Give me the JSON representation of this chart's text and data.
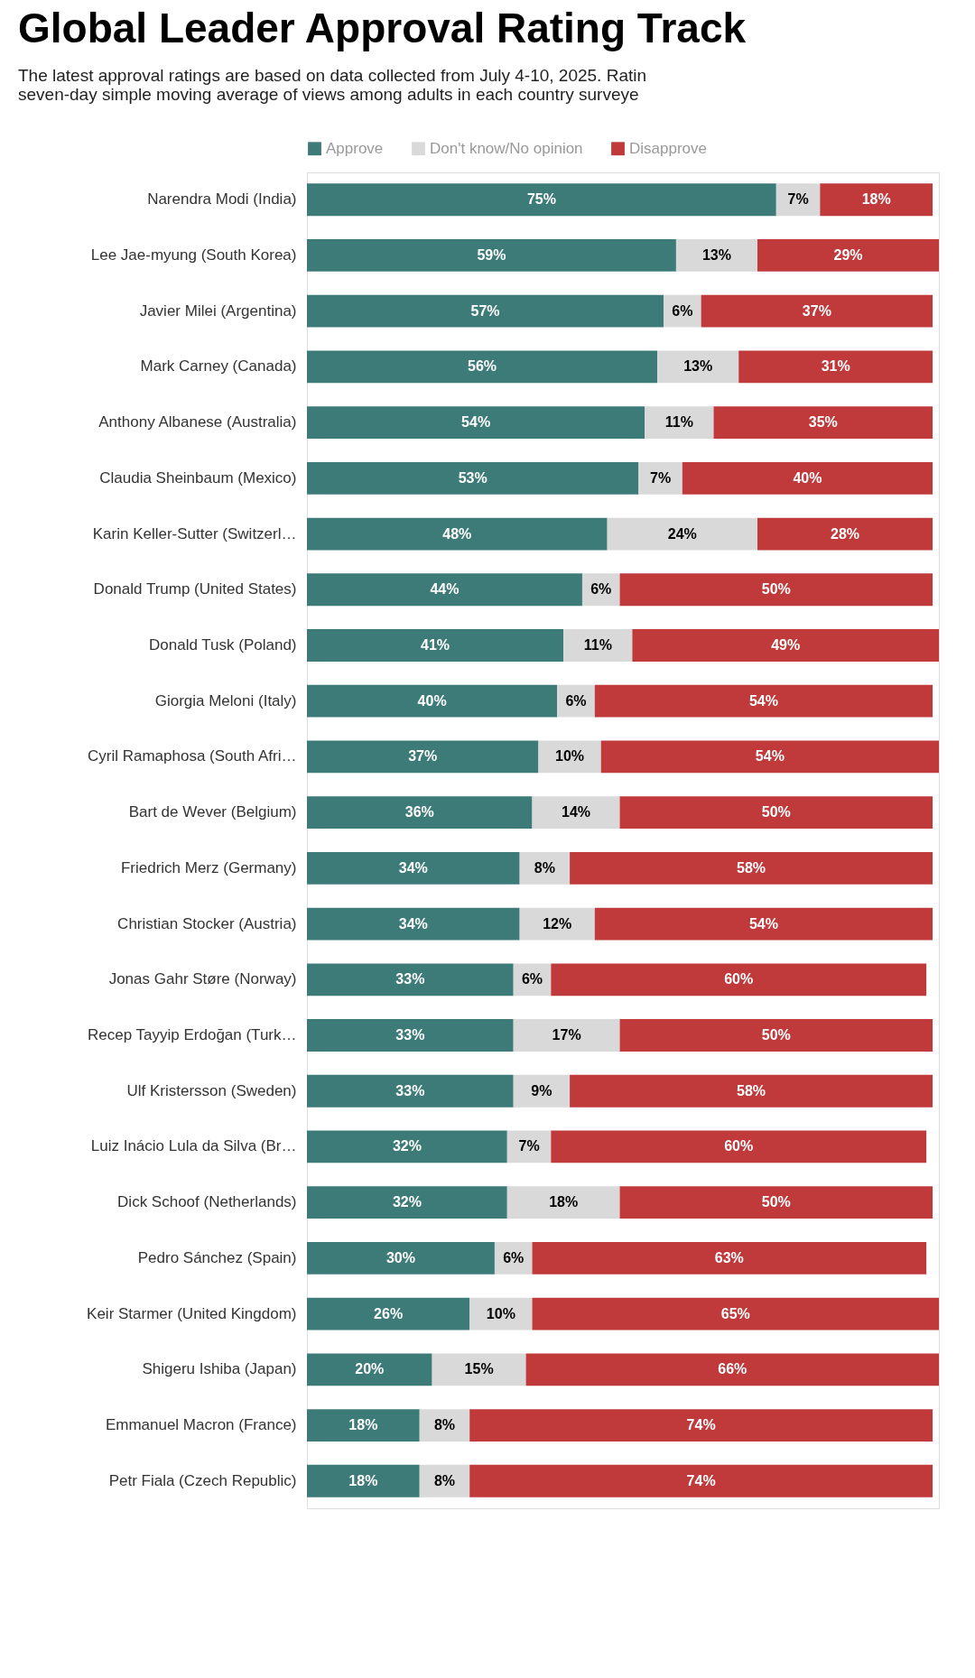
{
  "chart_data": {
    "type": "bar",
    "orientation": "horizontal",
    "stacked": true,
    "legend": "top",
    "grid": false,
    "title": "Global Leader Approval Rating Track",
    "subtitle": [
      "The latest approval ratings are based on data collected from July 4-10, 2025. Ratin",
      "seven-day simple moving average of views among adults in each country surveye"
    ],
    "categories": [
      "Narendra Modi (India)",
      "Lee Jae-myung (South Korea)",
      "Javier Milei (Argentina)",
      "Mark Carney (Canada)",
      "Anthony Albanese (Australia)",
      "Claudia Sheinbaum (Mexico)",
      "Karin Keller-Sutter (Switzerl…",
      "Donald Trump (United States)",
      "Donald Tusk (Poland)",
      "Giorgia Meloni (Italy)",
      "Cyril Ramaphosa (South Afri…",
      "Bart de Wever (Belgium)",
      "Friedrich Merz (Germany)",
      "Christian Stocker (Austria)",
      "Jonas Gahr Støre (Norway)",
      "Recep Tayyip Erdoğan (Turk…",
      "Ulf Kristersson (Sweden)",
      "Luiz Inácio Lula da Silva (Br…",
      "Dick Schoof (Netherlands)",
      "Pedro Sánchez (Spain)",
      "Keir Starmer (United Kingdom)",
      "Shigeru Ishiba (Japan)",
      "Emmanuel Macron (France)",
      "Petr Fiala (Czech Republic)"
    ],
    "series": [
      {
        "name": "Approve",
        "color": "#3d7b78",
        "values": [
          75,
          59,
          57,
          56,
          54,
          53,
          48,
          44,
          41,
          40,
          37,
          36,
          34,
          34,
          33,
          33,
          33,
          32,
          32,
          30,
          26,
          20,
          18,
          18
        ],
        "value_labels": [
          "75%",
          "59%",
          "57%",
          "56%",
          "54%",
          "53%",
          "48%",
          "44%",
          "41%",
          "40%",
          "37%",
          "36%",
          "34%",
          "34%",
          "33%",
          "33%",
          "33%",
          "32%",
          "32%",
          "30%",
          "26%",
          "20%",
          "18%",
          "18%"
        ]
      },
      {
        "name": "Don't know/No opinion",
        "color": "#d9d9d9",
        "values": [
          7,
          13,
          6,
          13,
          11,
          7,
          24,
          6,
          11,
          6,
          10,
          14,
          8,
          12,
          6,
          17,
          9,
          7,
          18,
          6,
          10,
          15,
          8,
          8
        ],
        "value_labels": [
          "7%",
          "13%",
          "6%",
          "13%",
          "11%",
          "7%",
          "24%",
          "6%",
          "11%",
          "6%",
          "10%",
          "14%",
          "8%",
          "12%",
          "6%",
          "17%",
          "9%",
          "7%",
          "18%",
          "6%",
          "10%",
          "15%",
          "8%",
          "8%"
        ]
      },
      {
        "name": "Disapprove",
        "color": "#c0393b",
        "values": [
          18,
          29,
          37,
          31,
          35,
          40,
          28,
          50,
          49,
          54,
          54,
          50,
          58,
          54,
          60,
          50,
          58,
          60,
          50,
          63,
          65,
          66,
          74,
          74
        ],
        "value_labels": [
          "18%",
          "29%",
          "37%",
          "31%",
          "35%",
          "40%",
          "28%",
          "50%",
          "49%",
          "54%",
          "54%",
          "50%",
          "58%",
          "54%",
          "60%",
          "50%",
          "58%",
          "60%",
          "50%",
          "63%",
          "65%",
          "66%",
          "74%",
          "74%"
        ]
      }
    ]
  }
}
